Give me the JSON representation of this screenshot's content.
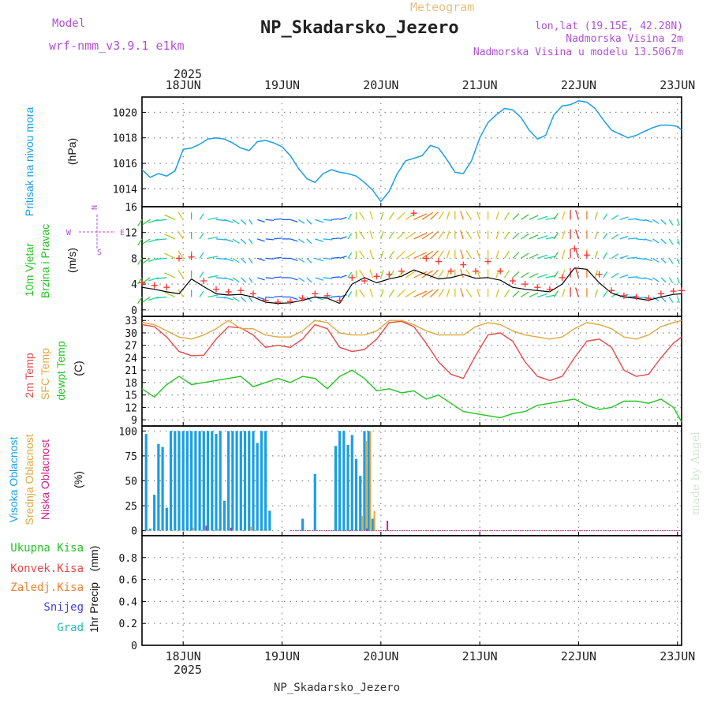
{
  "header": {
    "model_label": "Model",
    "model_name": "wrf-nmm_v3.9.1 e1km",
    "product": "Meteogram",
    "station": "NP_Skadarsko_Jezero",
    "lonlat": "lon,lat (19.15E, 42.28N)",
    "elevation": "Nadmorska Visina 2m",
    "model_elevation": "Nadmorska Visina u modelu 13.5067m"
  },
  "footer": {
    "station": "NP_Skadarsko_Jezero",
    "credit": "made by Angel"
  },
  "time_axis": {
    "year": "2025",
    "days": [
      "18JUN",
      "19JUN",
      "20JUN",
      "21JUN",
      "22JUN",
      "23JUN"
    ],
    "start_hour": 0,
    "end_hour": 131
  },
  "colors": {
    "pressure": "#1a9ee6",
    "temp2m": "#e84848",
    "sfc_temp": "#e0a840",
    "dewpoint": "#22c422",
    "high_cloud": "#1a9ee6",
    "mid_cloud": "#e0a840",
    "low_cloud": "#d0208a",
    "gust": "#ff3030",
    "wind_mean": "#000000"
  },
  "chart_data": [
    {
      "type": "line",
      "id": "pressure",
      "ylabel": "Pritisak na nivou mora",
      "unit": "(hPa)",
      "ylim": [
        1012.6,
        1021.2
      ],
      "yticks": [
        1014,
        1016,
        1018,
        1020
      ],
      "grid": true,
      "series": [
        {
          "x": [
            0,
            2,
            4,
            6,
            8,
            10,
            12,
            14,
            16,
            18,
            20,
            22,
            24,
            26,
            28,
            30,
            32,
            34,
            36,
            38,
            40,
            42,
            44,
            46,
            48,
            50,
            52,
            54,
            56,
            58,
            60,
            62,
            64,
            66,
            68,
            70,
            72,
            74,
            76,
            78,
            80,
            82,
            84,
            86,
            88,
            90,
            92,
            94,
            96,
            98,
            100,
            102,
            104,
            106,
            108,
            110,
            112,
            114,
            116,
            118,
            120,
            122,
            124,
            126,
            128,
            130,
            131
          ],
          "values": [
            1015.5,
            1014.9,
            1015.2,
            1015.0,
            1015.4,
            1017.1,
            1017.2,
            1017.5,
            1017.9,
            1018.0,
            1017.9,
            1017.6,
            1017.2,
            1017.0,
            1017.7,
            1017.8,
            1017.6,
            1017.3,
            1016.6,
            1015.6,
            1014.8,
            1014.5,
            1015.2,
            1015.5,
            1015.3,
            1015.2,
            1015.0,
            1014.5,
            1013.9,
            1013.0,
            1013.8,
            1015.2,
            1016.2,
            1016.4,
            1016.6,
            1017.4,
            1017.2,
            1016.3,
            1015.3,
            1015.2,
            1016.2,
            1018.0,
            1019.2,
            1019.8,
            1020.3,
            1020.2,
            1019.6,
            1018.6,
            1017.9,
            1018.2,
            1019.8,
            1020.5,
            1020.6,
            1020.9,
            1020.8,
            1020.3,
            1019.4,
            1018.6,
            1018.3,
            1018.0,
            1018.2,
            1018.5,
            1018.8,
            1019.0,
            1019.0,
            1018.9,
            1018.6
          ]
        }
      ]
    },
    {
      "type": "line",
      "id": "wind",
      "ylabel": "10m Vjetar Brzina i Pravac",
      "unit": "(m/s)",
      "ylim": [
        -1,
        16
      ],
      "yticks": [
        0,
        4,
        8,
        12,
        16
      ],
      "grid": true,
      "legend_axis": [
        "N",
        "E",
        "S",
        "W"
      ],
      "series": [
        {
          "name": "mean",
          "x": [
            0,
            3,
            6,
            9,
            12,
            15,
            18,
            21,
            24,
            27,
            30,
            33,
            36,
            39,
            42,
            45,
            48,
            51,
            54,
            57,
            60,
            63,
            66,
            69,
            72,
            75,
            78,
            81,
            84,
            87,
            90,
            93,
            96,
            99,
            102,
            105,
            108,
            111,
            114,
            117,
            120,
            123,
            126,
            129,
            131
          ],
          "values": [
            3.5,
            3.2,
            2.8,
            2.5,
            4.8,
            3.6,
            2.5,
            2.3,
            2.4,
            2.0,
            1.2,
            1.0,
            1.1,
            1.5,
            2.0,
            1.8,
            1.0,
            4.0,
            5.0,
            4.2,
            4.8,
            5.2,
            6.2,
            5.5,
            4.8,
            5.0,
            5.5,
            4.9,
            5.0,
            4.6,
            3.5,
            3.2,
            3.0,
            2.8,
            4.0,
            6.5,
            6.3,
            4.2,
            2.6,
            2.0,
            1.8,
            1.5,
            2.0,
            2.4,
            2.5
          ]
        },
        {
          "name": "gust",
          "x": [
            0,
            3,
            6,
            9,
            12,
            15,
            18,
            21,
            24,
            27,
            30,
            33,
            36,
            39,
            42,
            45,
            48,
            51,
            54,
            57,
            60,
            63,
            66,
            69,
            72,
            75,
            78,
            81,
            84,
            87,
            90,
            93,
            96,
            99,
            102,
            105,
            108,
            111,
            114,
            117,
            120,
            123,
            126,
            129,
            131
          ],
          "values": [
            4.2,
            3.8,
            3.5,
            8.0,
            8.2,
            4.5,
            3.2,
            2.8,
            3.0,
            2.5,
            1.5,
            1.2,
            1.3,
            1.8,
            2.5,
            2.2,
            1.5,
            5.0,
            4.5,
            5.2,
            5.5,
            6.0,
            15.0,
            8.0,
            7.5,
            6.0,
            7.0,
            6.0,
            7.5,
            6.0,
            4.5,
            4.0,
            3.5,
            3.2,
            5.0,
            9.5,
            8.5,
            5.5,
            3.0,
            2.2,
            2.0,
            1.8,
            2.5,
            2.9,
            3.0
          ]
        }
      ],
      "wind_barbs": {
        "x": [
          0,
          2,
          4,
          6,
          8,
          10,
          12,
          14,
          16,
          18,
          20,
          22,
          24,
          26,
          28,
          30,
          32,
          34,
          36,
          38,
          40,
          42,
          44,
          46,
          48,
          50,
          52,
          54,
          56,
          58,
          60,
          62,
          64,
          66,
          68,
          70,
          72,
          74,
          76,
          78,
          80,
          82,
          84,
          86,
          88,
          90,
          92,
          94,
          96,
          98,
          100,
          102,
          104,
          106,
          108,
          110,
          112,
          114,
          116,
          118,
          120,
          122,
          124,
          126,
          128,
          130
        ],
        "speed": [
          3.5,
          3.2,
          3.0,
          2.8,
          4.2,
          4.8,
          3.8,
          2.9,
          2.4,
          2.2,
          2.3,
          2.4,
          2.2,
          1.8,
          1.3,
          1.1,
          1.0,
          1.1,
          1.3,
          1.6,
          2.0,
          1.9,
          1.6,
          1.2,
          1.0,
          2.5,
          4.0,
          4.8,
          5.0,
          4.4,
          4.6,
          4.9,
          5.3,
          6.0,
          6.1,
          5.6,
          5.0,
          4.9,
          5.2,
          5.5,
          5.2,
          4.9,
          5.0,
          4.8,
          4.4,
          3.6,
          3.3,
          3.1,
          3.0,
          2.9,
          3.5,
          5.0,
          6.4,
          6.4,
          5.5,
          4.2,
          3.0,
          2.4,
          2.0,
          1.9,
          1.8,
          1.6,
          1.7,
          2.1,
          2.4,
          2.5
        ],
        "direction": [
          20,
          40,
          60,
          80,
          130,
          160,
          180,
          200,
          250,
          280,
          300,
          320,
          330,
          340,
          300,
          280,
          260,
          270,
          300,
          320,
          330,
          300,
          280,
          260,
          240,
          200,
          180,
          160,
          170,
          190,
          200,
          210,
          220,
          230,
          220,
          210,
          200,
          190,
          180,
          170,
          160,
          170,
          180,
          190,
          200,
          210,
          220,
          230,
          240,
          250,
          200,
          190,
          180,
          170,
          180,
          190,
          200,
          220,
          240,
          260,
          280,
          300,
          320,
          330,
          340,
          350
        ]
      }
    },
    {
      "type": "line",
      "id": "temperature",
      "ylabel": "2m Temp, SFC Temp, dewpt Temp",
      "unit": "(C)",
      "ylim": [
        7.5,
        34
      ],
      "yticks": [
        9,
        12,
        15,
        18,
        21,
        24,
        27,
        30,
        33
      ],
      "grid": true,
      "series": [
        {
          "name": "2m Temp",
          "x": [
            0,
            3,
            6,
            9,
            12,
            15,
            18,
            21,
            24,
            27,
            30,
            33,
            36,
            39,
            42,
            45,
            48,
            51,
            54,
            57,
            60,
            63,
            66,
            69,
            72,
            75,
            78,
            81,
            84,
            87,
            90,
            93,
            96,
            99,
            102,
            105,
            108,
            111,
            114,
            117,
            120,
            123,
            126,
            129,
            131
          ],
          "values": [
            32.0,
            31.5,
            29.0,
            25.5,
            24.5,
            24.6,
            28.5,
            31.5,
            31.2,
            29.5,
            26.5,
            27.0,
            26.5,
            28.5,
            32.0,
            31.0,
            26.5,
            25.5,
            26.0,
            28.5,
            32.5,
            32.8,
            31.5,
            27.5,
            23.0,
            20.0,
            19.0,
            24.5,
            29.5,
            30.0,
            28.0,
            23.0,
            19.5,
            18.5,
            19.5,
            24.0,
            28.0,
            28.5,
            26.5,
            21.0,
            19.5,
            20.0,
            24.0,
            27.5,
            29.0
          ]
        },
        {
          "name": "SFC Temp",
          "x": [
            0,
            3,
            6,
            9,
            12,
            15,
            18,
            21,
            24,
            27,
            30,
            33,
            36,
            39,
            42,
            45,
            48,
            51,
            54,
            57,
            60,
            63,
            66,
            69,
            72,
            75,
            78,
            81,
            84,
            87,
            90,
            93,
            96,
            99,
            102,
            105,
            108,
            111,
            114,
            117,
            120,
            123,
            126,
            129,
            131
          ],
          "values": [
            32.5,
            32.0,
            30.5,
            29.0,
            28.5,
            29.5,
            31.0,
            33.0,
            31.0,
            31.0,
            29.5,
            29.0,
            29.0,
            30.5,
            33.0,
            32.5,
            30.0,
            29.5,
            29.5,
            30.5,
            33.0,
            33.0,
            32.0,
            30.5,
            29.5,
            29.5,
            29.5,
            31.5,
            32.5,
            32.0,
            30.5,
            29.5,
            29.0,
            28.5,
            29.0,
            31.0,
            32.5,
            32.0,
            31.0,
            29.0,
            28.5,
            29.5,
            31.5,
            32.5,
            33.0
          ]
        },
        {
          "name": "dewpt Temp",
          "x": [
            0,
            3,
            6,
            9,
            12,
            15,
            18,
            21,
            24,
            27,
            30,
            33,
            36,
            39,
            42,
            45,
            48,
            51,
            54,
            57,
            60,
            63,
            66,
            69,
            72,
            75,
            78,
            81,
            84,
            87,
            90,
            93,
            96,
            99,
            102,
            105,
            108,
            111,
            114,
            117,
            120,
            123,
            126,
            129,
            131
          ],
          "values": [
            16.5,
            14.5,
            17.5,
            19.5,
            17.5,
            18.0,
            18.5,
            19.0,
            19.5,
            17.0,
            18.0,
            19.0,
            18.0,
            19.5,
            19.0,
            16.5,
            19.5,
            21.0,
            19.0,
            16.0,
            16.5,
            15.5,
            16.0,
            14.0,
            15.0,
            13.0,
            11.0,
            10.5,
            10.0,
            9.5,
            10.5,
            11.0,
            12.5,
            13.0,
            13.5,
            14.0,
            12.5,
            11.5,
            12.0,
            13.5,
            13.5,
            13.0,
            14.0,
            12.0,
            8.5
          ]
        }
      ]
    },
    {
      "type": "bar",
      "id": "clouds",
      "ylabel": "Visoka Oblacnost, Srednja Oblacnost, Niska Oblacnost",
      "unit": "(%)",
      "ylim": [
        -5,
        105
      ],
      "yticks": [
        0,
        25,
        50,
        75,
        100
      ],
      "grid": true,
      "series": [
        {
          "name": "Visoka Oblacnost",
          "x": [
            1,
            2,
            3,
            4,
            5,
            6,
            7,
            8,
            9,
            10,
            11,
            12,
            13,
            14,
            15,
            16,
            17,
            18,
            19,
            20,
            21,
            22,
            23,
            24,
            25,
            26,
            27,
            28,
            29,
            30,
            31,
            32,
            33,
            34,
            39,
            42,
            47,
            48,
            49,
            50,
            51,
            52,
            53,
            54,
            55,
            56,
            57
          ],
          "values": [
            97,
            2,
            36,
            87,
            84,
            23,
            100,
            100,
            100,
            100,
            100,
            100,
            100,
            100,
            100,
            100,
            100,
            97,
            100,
            30,
            100,
            100,
            100,
            100,
            100,
            100,
            100,
            88,
            100,
            100,
            20,
            0,
            0,
            0,
            12,
            57,
            85,
            100,
            100,
            86,
            96,
            72,
            55,
            100,
            100,
            12,
            0
          ]
        },
        {
          "name": "Srednja Oblacnost",
          "x": [
            12,
            18,
            26,
            29,
            53,
            54,
            55,
            56
          ],
          "values": [
            3,
            2,
            4,
            2,
            15,
            90,
            100,
            20
          ]
        },
        {
          "name": "Niska Oblacnost",
          "x": [
            16,
            22,
            55,
            60
          ],
          "values": [
            5,
            3,
            2,
            10
          ]
        }
      ]
    },
    {
      "type": "bar",
      "id": "precip",
      "ylabel": "1hr Precip",
      "unit": "(mm)",
      "ylim": [
        0,
        1.0
      ],
      "yticks": [
        0,
        0.2,
        0.4,
        0.6,
        0.8
      ],
      "grid": true,
      "legend": [
        "Ukupna Kisa",
        "Konvek.Kisa",
        "Zaledj.Kisa",
        "Snijeg",
        "Grad"
      ],
      "series": []
    }
  ]
}
